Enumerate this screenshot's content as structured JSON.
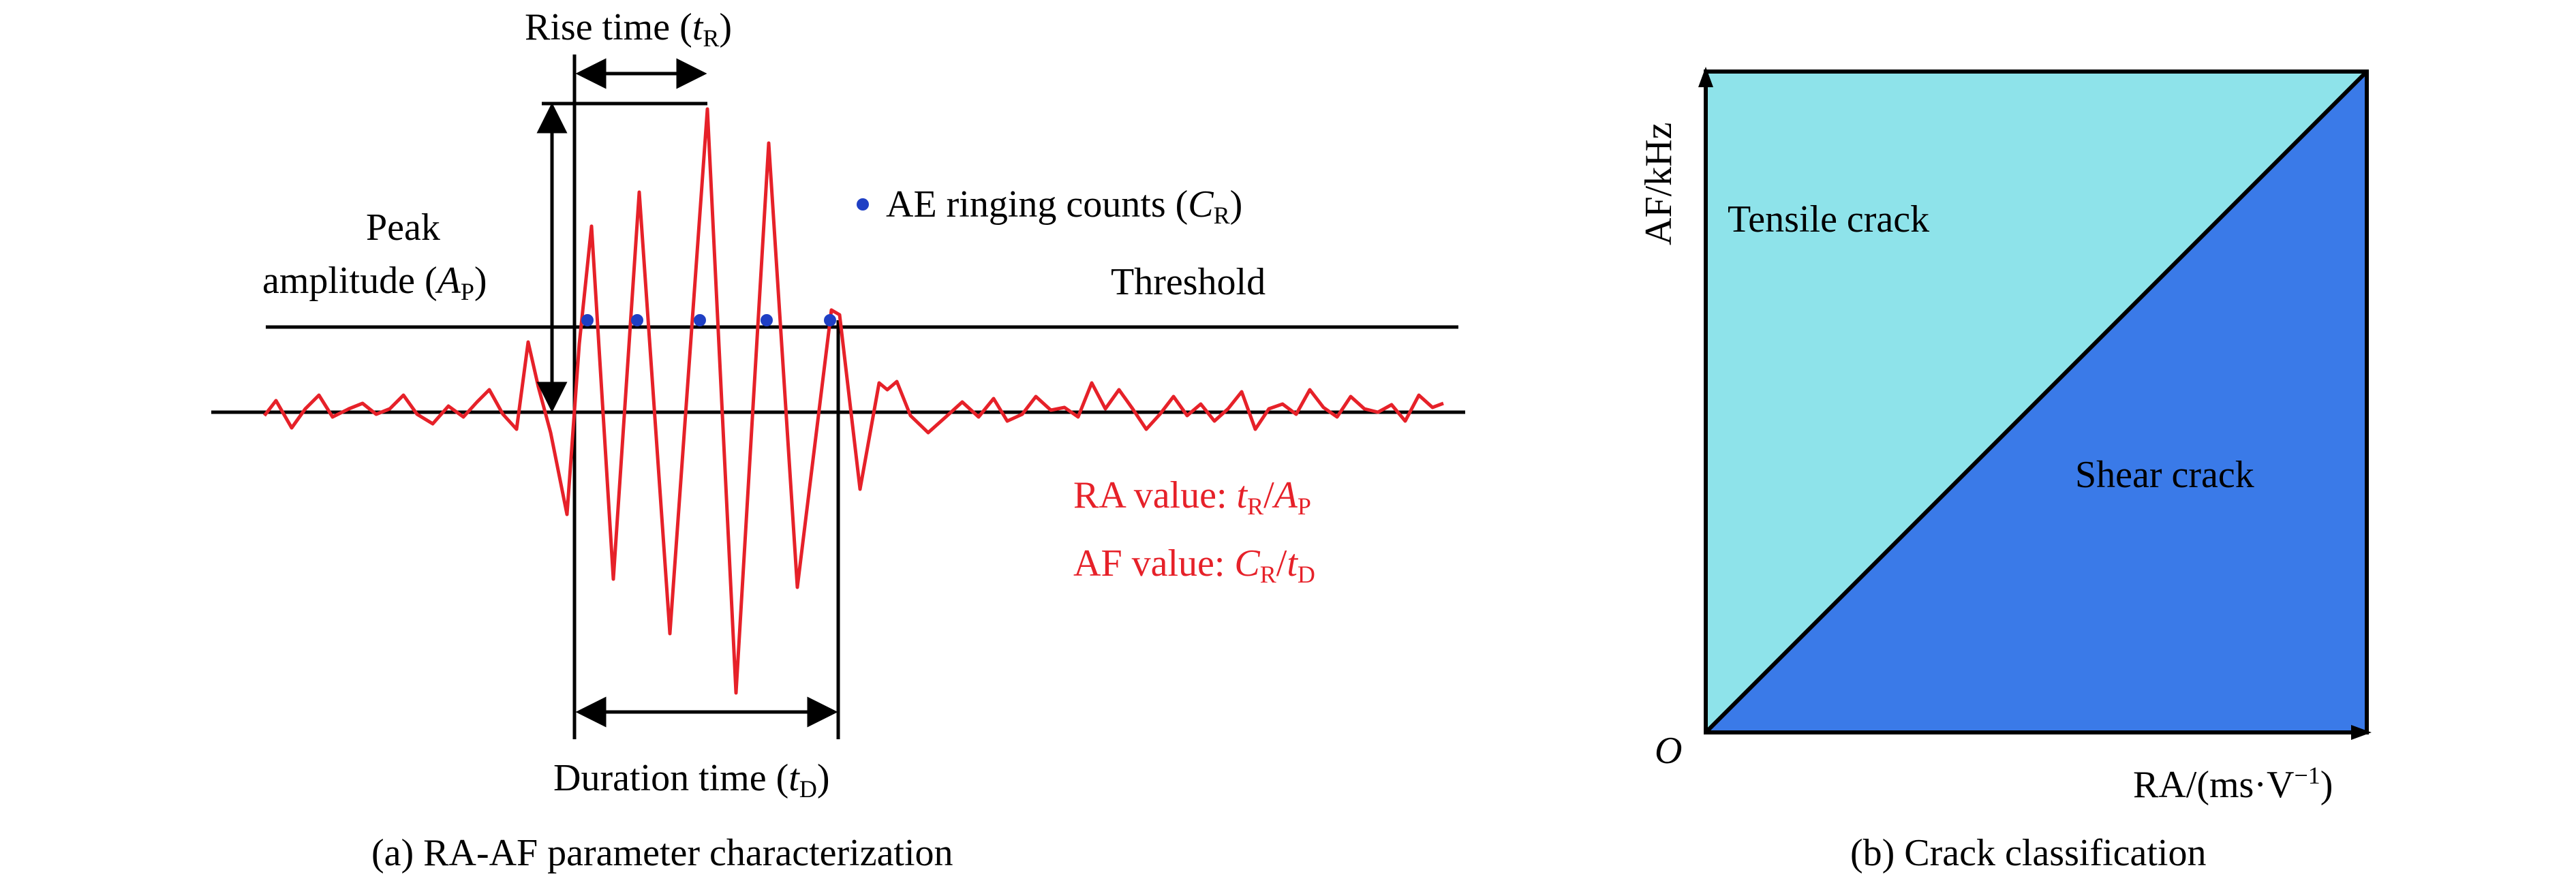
{
  "colors": {
    "waveform": "#e62129",
    "count_dot": "#1f3fc4",
    "tensile_region": "#8ee3ea",
    "shear_region": "#3a7ae8",
    "lines": "#000000"
  },
  "panel_a": {
    "caption": "(a) RA-AF parameter characterization",
    "rise_time_text": "Rise time (",
    "rise_time_var": "t",
    "rise_time_sub": "R",
    "rise_time_close": ")",
    "peak_line1": "Peak",
    "peak_line2_text": "amplitude (",
    "peak_var": "A",
    "peak_sub": "P",
    "peak_close": ")",
    "ringing_text": "AE ringing counts (",
    "ringing_var": "C",
    "ringing_sub": "R",
    "ringing_close": ")",
    "threshold": "Threshold",
    "ra_prefix": "RA value: ",
    "ra_var1": "t",
    "ra_sub1": "R",
    "ra_slash": "/",
    "ra_var2": "A",
    "ra_sub2": "P",
    "af_prefix": "AF value: ",
    "af_var1": "C",
    "af_sub1": "R",
    "af_slash": "/",
    "af_var2": "t",
    "af_sub2": "D",
    "duration_text": "Duration time (",
    "duration_var": "t",
    "duration_sub": "D",
    "duration_close": ")"
  },
  "panel_b": {
    "caption": "(b) Crack classification",
    "y_axis_label": "AF/kHz",
    "x_axis_label_text": "RA/(ms·V",
    "x_axis_label_sup": "−1",
    "x_axis_label_close": ")",
    "origin": "O",
    "tensile_label": "Tensile crack",
    "shear_label": "Shear crack"
  }
}
